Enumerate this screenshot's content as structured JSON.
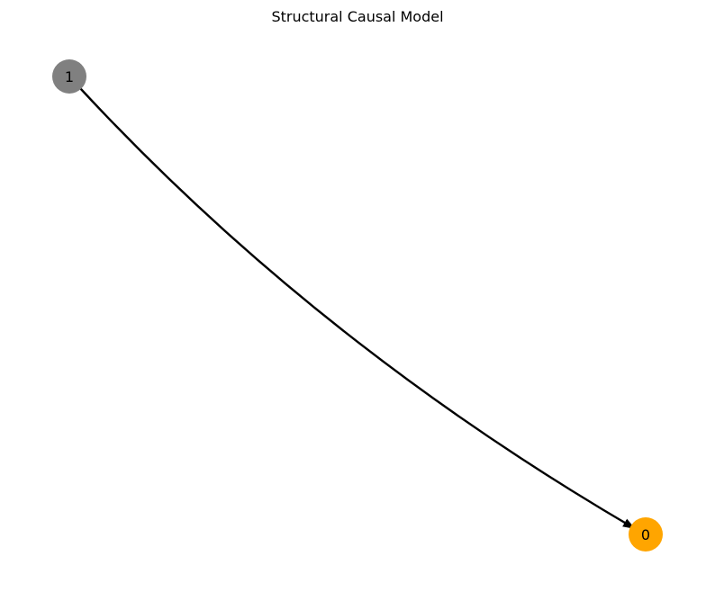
{
  "title": "Structural Causal Model",
  "nodes": [
    {
      "id": "1",
      "label": "1",
      "color": "#808080"
    },
    {
      "id": "0",
      "label": "0",
      "color": "#FFA500"
    }
  ],
  "edges": [
    {
      "from": "1",
      "to": "0",
      "color": "#000000"
    }
  ]
}
